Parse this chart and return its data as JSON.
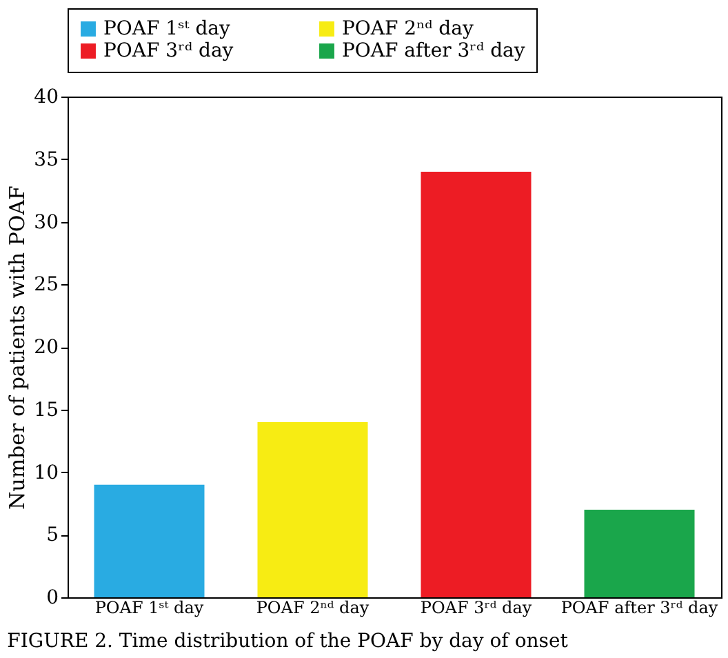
{
  "chart_data": {
    "type": "bar",
    "categories": [
      "POAF 1ˢᵗ day",
      "POAF 2ⁿᵈ day",
      "POAF 3ʳᵈ day",
      "POAF after 3ʳᵈ day"
    ],
    "series": [
      {
        "name": "POAF 1ˢᵗ day",
        "color": "#29abe2",
        "values": [
          9,
          null,
          null,
          null
        ]
      },
      {
        "name": "POAF 2ⁿᵈ day",
        "color": "#f7ec13",
        "values": [
          null,
          14,
          null,
          null
        ]
      },
      {
        "name": "POAF 3ʳᵈ day",
        "color": "#ed1c24",
        "values": [
          null,
          null,
          34,
          null
        ]
      },
      {
        "name": "POAF after 3ʳᵈ day",
        "color": "#1aa64b",
        "values": [
          null,
          null,
          null,
          7
        ]
      }
    ],
    "ylabel": "Number of patients with POAF",
    "ylim": [
      0,
      40
    ],
    "yticks": [
      0,
      5,
      10,
      15,
      20,
      25,
      30,
      35,
      40
    ],
    "grid": false,
    "legend": "top",
    "annotations": [
      "FIGURE 2.  Time distribution of the POAF by day of onset"
    ]
  }
}
